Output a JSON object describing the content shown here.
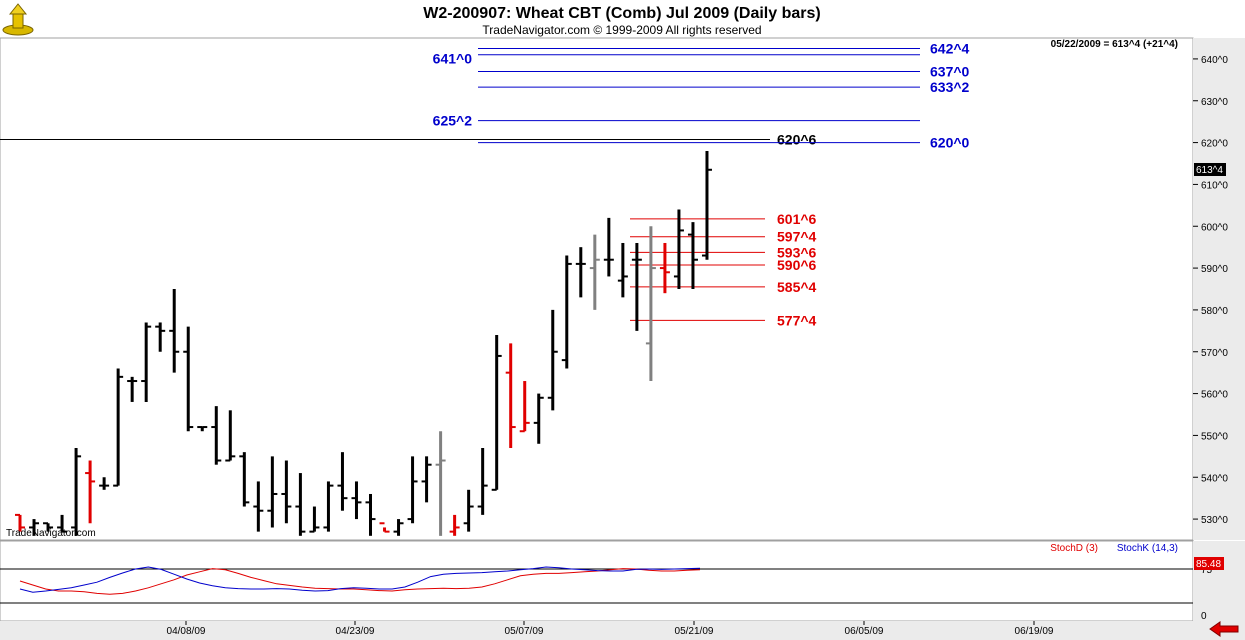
{
  "window": {
    "title": "W2-200907:  Wheat CBT (Comb) Jul 2009  (Daily bars)",
    "subtitle": "TradeNavigator.com © 1999-2009 All rights reserved",
    "watermark": "TradeNavigator.com",
    "status": "05/22/2009 = 613^4 (+21^4)"
  },
  "colors": {
    "up": "#000000",
    "down": "#e00000",
    "neutral": "#808080",
    "blue_level": "#0000cc",
    "red_level": "#e00000",
    "stochD": "#e00000",
    "stochK": "#0000cc",
    "panel_bg": "#ffffff",
    "axis_bg": "#ebebeb"
  },
  "chart_data": [
    {
      "type": "ohlc",
      "ylim": [
        525,
        645
      ],
      "yticks": [
        "530^0",
        "540^0",
        "550^0",
        "560^0",
        "570^0",
        "580^0",
        "590^0",
        "600^0",
        "610^0",
        "620^0",
        "630^0",
        "640^0"
      ],
      "xticks": [
        "04/08/09",
        "04/23/09",
        "05/07/09",
        "05/21/09",
        "06/05/09",
        "06/19/09"
      ],
      "last_label": "613^4",
      "bars": [
        {
          "o": 531,
          "h": 531,
          "l": 527,
          "c": 528,
          "color": "down"
        },
        {
          "o": 528,
          "h": 530,
          "l": 526,
          "c": 529,
          "color": "up"
        },
        {
          "o": 529,
          "h": 529,
          "l": 527,
          "c": 528,
          "color": "up"
        },
        {
          "o": 528,
          "h": 531,
          "l": 527,
          "c": 527,
          "color": "up"
        },
        {
          "o": 528,
          "h": 547,
          "l": 526,
          "c": 545,
          "color": "up"
        },
        {
          "o": 541,
          "h": 544,
          "l": 529,
          "c": 539,
          "color": "down"
        },
        {
          "o": 538,
          "h": 540,
          "l": 537,
          "c": 538,
          "color": "up"
        },
        {
          "o": 538,
          "h": 566,
          "l": 538,
          "c": 564,
          "color": "up"
        },
        {
          "o": 563,
          "h": 564,
          "l": 558,
          "c": 563,
          "color": "up"
        },
        {
          "o": 563,
          "h": 577,
          "l": 558,
          "c": 576,
          "color": "up"
        },
        {
          "o": 576,
          "h": 577,
          "l": 570,
          "c": 575,
          "color": "up"
        },
        {
          "o": 575,
          "h": 585,
          "l": 565,
          "c": 570,
          "color": "up"
        },
        {
          "o": 570,
          "h": 576,
          "l": 551,
          "c": 552,
          "color": "up"
        },
        {
          "o": 552,
          "h": 552,
          "l": 551,
          "c": 552,
          "color": "up"
        },
        {
          "o": 552,
          "h": 557,
          "l": 543,
          "c": 544,
          "color": "up"
        },
        {
          "o": 544,
          "h": 556,
          "l": 544,
          "c": 545,
          "color": "up"
        },
        {
          "o": 545,
          "h": 546,
          "l": 533,
          "c": 534,
          "color": "up"
        },
        {
          "o": 533,
          "h": 539,
          "l": 527,
          "c": 532,
          "color": "up"
        },
        {
          "o": 532,
          "h": 545,
          "l": 528,
          "c": 536,
          "color": "up"
        },
        {
          "o": 536,
          "h": 544,
          "l": 529,
          "c": 533,
          "color": "up"
        },
        {
          "o": 533,
          "h": 541,
          "l": 526,
          "c": 527,
          "color": "up"
        },
        {
          "o": 527,
          "h": 533,
          "l": 527,
          "c": 528,
          "color": "up"
        },
        {
          "o": 528,
          "h": 539,
          "l": 527,
          "c": 538,
          "color": "up"
        },
        {
          "o": 538,
          "h": 546,
          "l": 532,
          "c": 535,
          "color": "up"
        },
        {
          "o": 535,
          "h": 539,
          "l": 530,
          "c": 534,
          "color": "up"
        },
        {
          "o": 534,
          "h": 536,
          "l": 526,
          "c": 530,
          "color": "up"
        },
        {
          "o": 529,
          "h": 528,
          "l": 527,
          "c": 527,
          "color": "down"
        },
        {
          "o": 527,
          "h": 530,
          "l": 526,
          "c": 529,
          "color": "up"
        },
        {
          "o": 530,
          "h": 545,
          "l": 529,
          "c": 539,
          "color": "up"
        },
        {
          "o": 539,
          "h": 545,
          "l": 534,
          "c": 543,
          "color": "up"
        },
        {
          "o": 543,
          "h": 551,
          "l": 526,
          "c": 544,
          "color": "neutral"
        },
        {
          "o": 527,
          "h": 531,
          "l": 526,
          "c": 528,
          "color": "down"
        },
        {
          "o": 529,
          "h": 537,
          "l": 527,
          "c": 533,
          "color": "up"
        },
        {
          "o": 533,
          "h": 547,
          "l": 531,
          "c": 538,
          "color": "up"
        },
        {
          "o": 537,
          "h": 574,
          "l": 537,
          "c": 569,
          "color": "up"
        },
        {
          "o": 565,
          "h": 572,
          "l": 547,
          "c": 552,
          "color": "down"
        },
        {
          "o": 551,
          "h": 563,
          "l": 551,
          "c": 553,
          "color": "down"
        },
        {
          "o": 553,
          "h": 560,
          "l": 548,
          "c": 559,
          "color": "up"
        },
        {
          "o": 559,
          "h": 580,
          "l": 556,
          "c": 570,
          "color": "up"
        },
        {
          "o": 568,
          "h": 593,
          "l": 566,
          "c": 591,
          "color": "up"
        },
        {
          "o": 591,
          "h": 595,
          "l": 583,
          "c": 591,
          "color": "up"
        },
        {
          "o": 590,
          "h": 598,
          "l": 580,
          "c": 592,
          "color": "neutral"
        },
        {
          "o": 592,
          "h": 602,
          "l": 588,
          "c": 592,
          "color": "up"
        },
        {
          "o": 587,
          "h": 596,
          "l": 583,
          "c": 588,
          "color": "up"
        },
        {
          "o": 592,
          "h": 596,
          "l": 575,
          "c": 592,
          "color": "up"
        },
        {
          "o": 572,
          "h": 600,
          "l": 563,
          "c": 590,
          "color": "neutral"
        },
        {
          "o": 590,
          "h": 596,
          "l": 584,
          "c": 589,
          "color": "down"
        },
        {
          "o": 588,
          "h": 604,
          "l": 585,
          "c": 599,
          "color": "up"
        },
        {
          "o": 598,
          "h": 601,
          "l": 585,
          "c": 592,
          "color": "up"
        },
        {
          "o": 593,
          "h": 618,
          "l": 592,
          "c": 613.5,
          "color": "up"
        }
      ],
      "levels": [
        {
          "label": "641^0",
          "value": 641.0,
          "color": "blue"
        },
        {
          "label": "642^4",
          "value": 642.5,
          "color": "blue"
        },
        {
          "label": "637^0",
          "value": 637.0,
          "color": "blue"
        },
        {
          "label": "633^2",
          "value": 633.25,
          "color": "blue"
        },
        {
          "label": "625^2",
          "value": 625.25,
          "color": "blue"
        },
        {
          "label": "620^6",
          "value": 620.75,
          "color": "black"
        },
        {
          "label": "620^0",
          "value": 620.0,
          "color": "blue"
        },
        {
          "label": "601^6",
          "value": 601.75,
          "color": "red"
        },
        {
          "label": "597^4",
          "value": 597.5,
          "color": "red"
        },
        {
          "label": "593^6",
          "value": 593.75,
          "color": "red"
        },
        {
          "label": "590^6",
          "value": 590.75,
          "color": "red"
        },
        {
          "label": "585^4",
          "value": 585.5,
          "color": "red"
        },
        {
          "label": "577^4",
          "value": 577.5,
          "color": "red"
        }
      ]
    },
    {
      "type": "line",
      "ylim": [
        0,
        100
      ],
      "yticks": [
        "75",
        "0"
      ],
      "legend": [
        "StochD (3)",
        "StochK (14,3)"
      ],
      "last_label": "85.48",
      "series": [
        {
          "name": "StochD (3)",
          "values": [
            55,
            45,
            35,
            30,
            30,
            28,
            24,
            22,
            24,
            30,
            38,
            48,
            58,
            70,
            78,
            86,
            83,
            74,
            64,
            56,
            48,
            44,
            40,
            37,
            36,
            35,
            35,
            33,
            31,
            30,
            33,
            35,
            36,
            37,
            36,
            37,
            40,
            48,
            58,
            68,
            72,
            74,
            74,
            76,
            78,
            80,
            83,
            86,
            85,
            82,
            80,
            80,
            82,
            83
          ]
        },
        {
          "name": "StochK (14,3)",
          "values": [
            35,
            27,
            30,
            34,
            38,
            45,
            52,
            64,
            75,
            85,
            90,
            84,
            72,
            60,
            50,
            43,
            38,
            36,
            35,
            35,
            36,
            35,
            32,
            30,
            31,
            36,
            38,
            37,
            35,
            35,
            40,
            52,
            66,
            72,
            74,
            75,
            76,
            78,
            80,
            83,
            86,
            90,
            88,
            85,
            83,
            81,
            80,
            80,
            84,
            85,
            84,
            85,
            86,
            87
          ]
        }
      ]
    }
  ]
}
